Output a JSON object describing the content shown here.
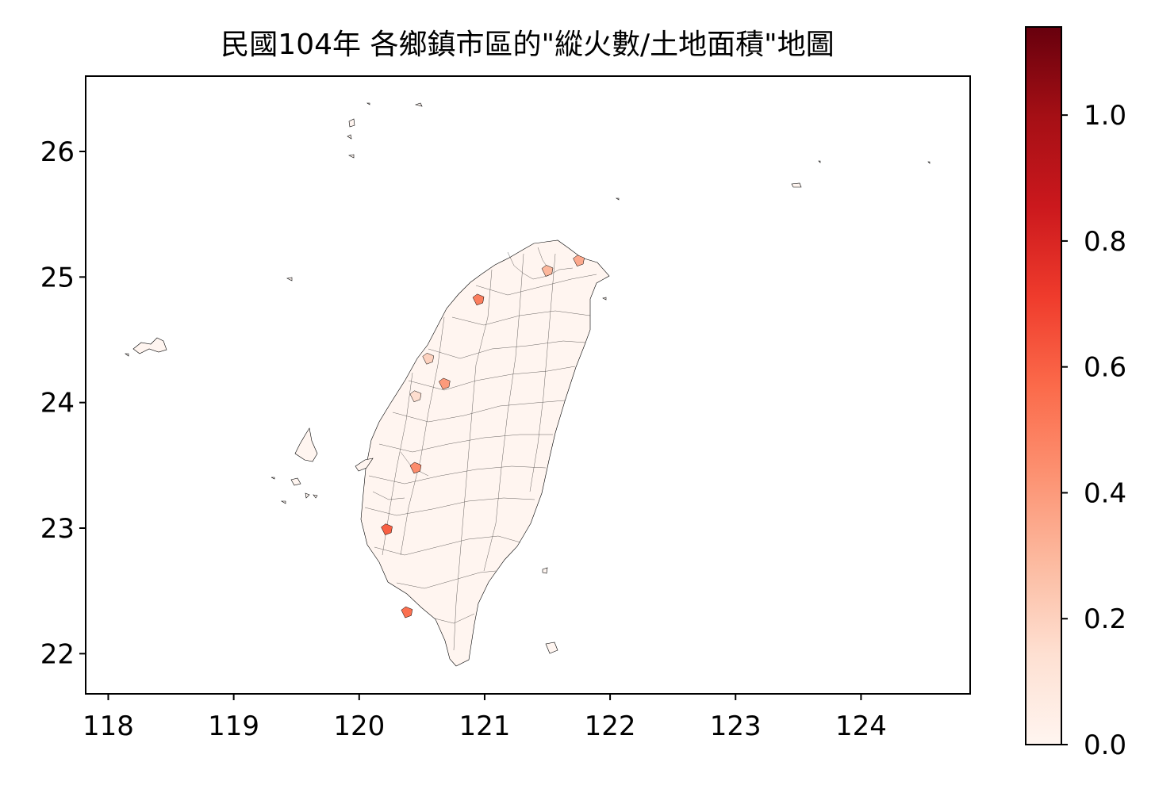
{
  "map": {
    "title": "民國104年 各鄉鎮市區的\"縱火數/土地面積\"地圖",
    "x_ticks": [
      "118",
      "119",
      "120",
      "121",
      "122",
      "123",
      "124"
    ],
    "y_ticks": [
      "22",
      "23",
      "24",
      "25",
      "26"
    ],
    "x_tick_values": [
      118,
      119,
      120,
      121,
      122,
      123,
      124
    ],
    "y_tick_values": [
      22,
      23,
      24,
      25,
      26
    ],
    "xlim": [
      117.82,
      124.87
    ],
    "ylim": [
      21.68,
      26.6
    ],
    "region_fill": "#fff5f0",
    "boundary_color": "#000000",
    "highlighted_districts": [
      {
        "lon": 120.95,
        "lat": 24.82,
        "value": 0.5
      },
      {
        "lon": 121.5,
        "lat": 25.05,
        "value": 0.3
      },
      {
        "lon": 121.75,
        "lat": 25.13,
        "value": 0.35
      },
      {
        "lon": 120.55,
        "lat": 24.35,
        "value": 0.2
      },
      {
        "lon": 120.68,
        "lat": 24.15,
        "value": 0.4
      },
      {
        "lon": 120.45,
        "lat": 23.48,
        "value": 0.45
      },
      {
        "lon": 120.22,
        "lat": 22.99,
        "value": 0.6
      },
      {
        "lon": 120.38,
        "lat": 22.33,
        "value": 0.55
      },
      {
        "lon": 120.45,
        "lat": 24.05,
        "value": 0.15
      }
    ]
  },
  "colorbar": {
    "cmap": "Reds",
    "min": 0.0,
    "max": 1.14,
    "ticks": [
      "0.0",
      "0.2",
      "0.4",
      "0.6",
      "0.8",
      "1.0"
    ],
    "tick_values": [
      0.0,
      0.2,
      0.4,
      0.6,
      0.8,
      1.0
    ],
    "colors": [
      "#fff5f0",
      "#fee0d2",
      "#fcbba1",
      "#fc9272",
      "#fb6a4a",
      "#ef3b2c",
      "#cb181d",
      "#a50f15",
      "#67000d"
    ]
  }
}
